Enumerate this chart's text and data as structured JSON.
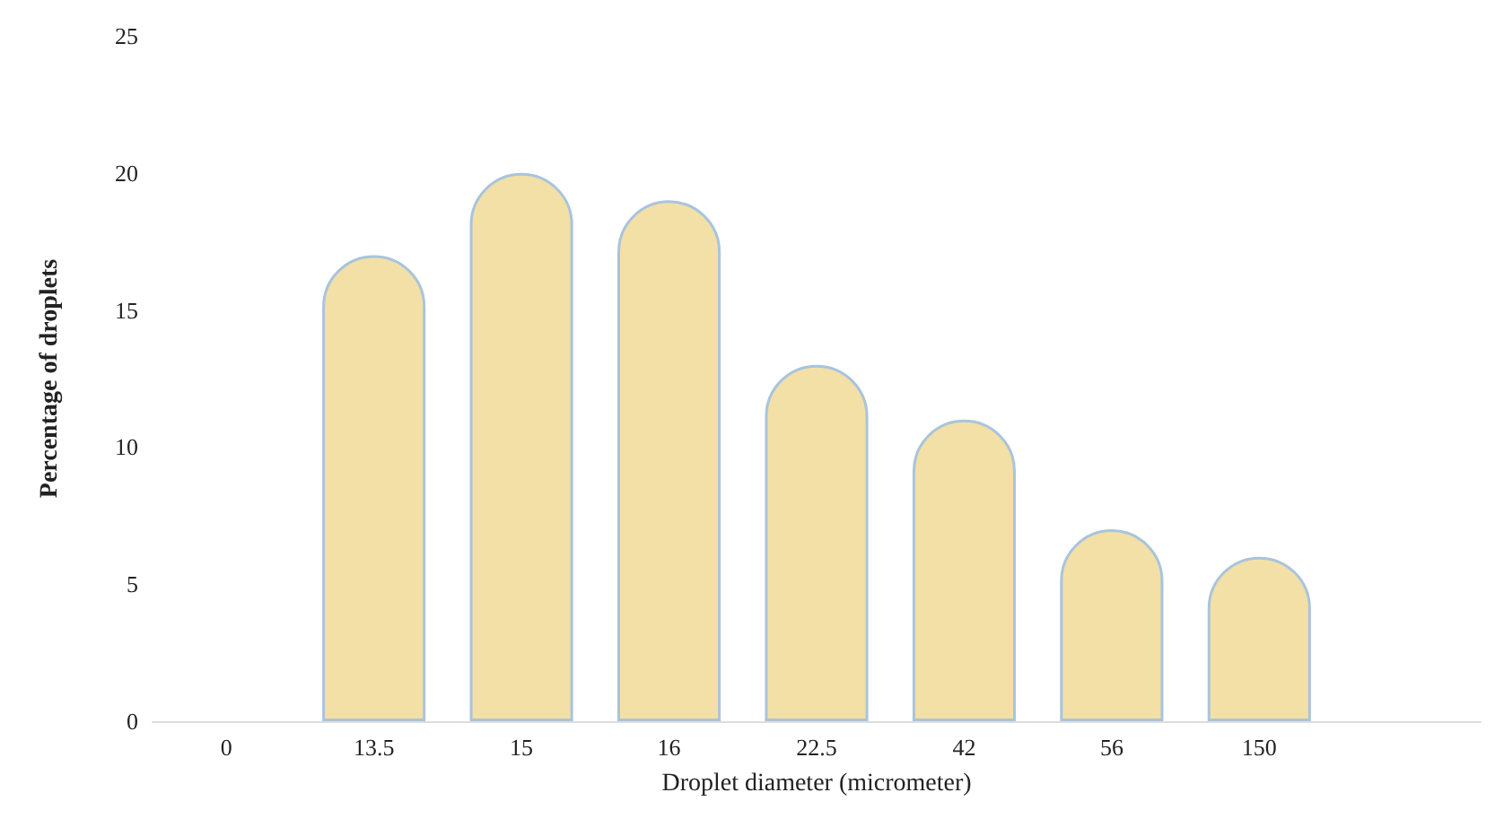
{
  "chart_data": {
    "type": "bar",
    "xlabel": "Droplet diameter (micrometer)",
    "ylabel": "Percentage of droplets",
    "categories": [
      "0",
      "13.5",
      "15",
      "16",
      "22.5",
      "42",
      "56",
      "150",
      null
    ],
    "series": [
      {
        "color": "#f3e0a6",
        "values": [
          null,
          17,
          20,
          19,
          13,
          11,
          7,
          6,
          null
        ]
      }
    ],
    "ylim": [
      0,
      25
    ],
    "yticks": [
      0,
      5,
      10,
      15,
      20,
      25
    ],
    "grid": false
  }
}
